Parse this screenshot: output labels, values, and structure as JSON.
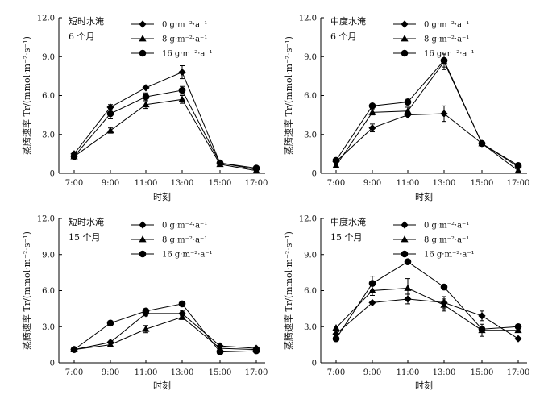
{
  "series_names": [
    "0 g·m⁻²·a⁻¹",
    "8 g·m⁻²·a⁻¹",
    "16 g·m⁻²·a⁻¹"
  ],
  "x_label": "时刻",
  "y_label": "蒸腾速率 Tr/(mmol·m⁻²·s⁻¹)",
  "chart_data": [
    {
      "type": "line",
      "note_line1": "短时水淹",
      "note_line2": "6 个月",
      "categories": [
        "7:00",
        "9:00",
        "11:00",
        "13:00",
        "15:00",
        "17:00"
      ],
      "y_ticks": [
        "0",
        "3.0",
        "6.0",
        "9.0",
        "12.0"
      ],
      "ylim": [
        0,
        12
      ],
      "xlabel": "时刻",
      "ylabel": "蒸腾速率 Tr/(mmol·m⁻²·s⁻¹)",
      "legend_location": "top-center",
      "series": [
        {
          "name": "0 g·m⁻²·a⁻¹",
          "marker": "diamond",
          "values": [
            1.5,
            5.1,
            6.6,
            7.8,
            0.8,
            0.3
          ],
          "errors": [
            0,
            0.2,
            0.1,
            0.5,
            0,
            0
          ]
        },
        {
          "name": "8 g·m⁻²·a⁻¹",
          "marker": "triangle",
          "values": [
            1.3,
            3.3,
            5.3,
            5.7,
            0.7,
            0.2
          ],
          "errors": [
            0,
            0.2,
            0.3,
            0.3,
            0,
            0
          ]
        },
        {
          "name": "16 g·m⁻²·a⁻¹",
          "marker": "circle",
          "values": [
            1.3,
            4.6,
            5.9,
            6.4,
            0.8,
            0.4
          ],
          "errors": [
            0,
            0.4,
            0.3,
            0.3,
            0,
            0
          ]
        }
      ]
    },
    {
      "type": "line",
      "note_line1": "中度水淹",
      "note_line2": "6 个月",
      "categories": [
        "7:00",
        "9:00",
        "11:00",
        "13:00",
        "15:00",
        "17:00"
      ],
      "y_ticks": [
        "0",
        "3.0",
        "6.0",
        "9.0",
        "12.0"
      ],
      "ylim": [
        0,
        12
      ],
      "xlabel": "时刻",
      "ylabel": "蒸腾速率 Tr/(mmol·m⁻²·s⁻¹)",
      "legend_location": "top-center",
      "series": [
        {
          "name": "0 g·m⁻²·a⁻¹",
          "marker": "diamond",
          "values": [
            0.9,
            3.5,
            4.5,
            4.6,
            2.3,
            0.5
          ],
          "errors": [
            0,
            0.3,
            0.1,
            0.6,
            0,
            0
          ]
        },
        {
          "name": "8 g·m⁻²·a⁻¹",
          "marker": "triangle",
          "values": [
            0.6,
            4.7,
            4.8,
            8.6,
            2.3,
            0.2
          ],
          "errors": [
            0,
            0.2,
            0.3,
            0.6,
            0,
            0
          ]
        },
        {
          "name": "16 g·m⁻²·a⁻¹",
          "marker": "circle",
          "values": [
            1.0,
            5.2,
            5.5,
            8.7,
            2.3,
            0.6
          ],
          "errors": [
            0,
            0.3,
            0.3,
            0.5,
            0,
            0
          ]
        }
      ]
    },
    {
      "type": "line",
      "note_line1": "短时水淹",
      "note_line2": "15 个月",
      "categories": [
        "7:00",
        "9:00",
        "11:00",
        "13:00",
        "15:00",
        "17:00"
      ],
      "y_ticks": [
        "0",
        "3.0",
        "6.0",
        "9.0",
        "12.0"
      ],
      "ylim": [
        0,
        12
      ],
      "xlabel": "时刻",
      "ylabel": "蒸腾速率 Tr/(mmol·m⁻²·s⁻¹)",
      "legend_location": "top-center",
      "series": [
        {
          "name": "0 g·m⁻²·a⁻¹",
          "marker": "diamond",
          "values": [
            1.1,
            1.7,
            4.1,
            4.1,
            1.4,
            1.2
          ],
          "errors": [
            0,
            0,
            0.2,
            0.2,
            0,
            0
          ]
        },
        {
          "name": "8 g·m⁻²·a⁻¹",
          "marker": "triangle",
          "values": [
            1.1,
            1.5,
            2.8,
            3.8,
            1.2,
            1.1
          ],
          "errors": [
            0,
            0,
            0.3,
            0.2,
            0,
            0
          ]
        },
        {
          "name": "16 g·m⁻²·a⁻¹",
          "marker": "circle",
          "values": [
            1.1,
            3.3,
            4.3,
            4.9,
            0.9,
            1.0
          ],
          "errors": [
            0,
            0,
            0.2,
            0.1,
            0,
            0
          ]
        }
      ]
    },
    {
      "type": "line",
      "note_line1": "中度水淹",
      "note_line2": "15 个月",
      "categories": [
        "7:00",
        "9:00",
        "11:00",
        "13:00",
        "15:00",
        "17:00"
      ],
      "y_ticks": [
        "0",
        "3.0",
        "6.0",
        "9.0",
        "12.0"
      ],
      "ylim": [
        0,
        12
      ],
      "xlabel": "时刻",
      "ylabel": "蒸腾速率 Tr/(mmol·m⁻²·s⁻¹)",
      "legend_location": "top-center",
      "series": [
        {
          "name": "0 g·m⁻²·a⁻¹",
          "marker": "diamond",
          "values": [
            2.4,
            5.0,
            5.3,
            5.0,
            3.9,
            2.0
          ],
          "errors": [
            0,
            0,
            0.4,
            0.5,
            0.4,
            0
          ]
        },
        {
          "name": "8 g·m⁻²·a⁻¹",
          "marker": "triangle",
          "values": [
            2.9,
            6.0,
            6.2,
            4.8,
            2.7,
            2.7
          ],
          "errors": [
            0,
            0.4,
            0.8,
            0.5,
            0.5,
            0
          ]
        },
        {
          "name": "16 g·m⁻²·a⁻¹",
          "marker": "circle",
          "values": [
            2.0,
            6.6,
            8.4,
            6.3,
            2.8,
            3.0
          ],
          "errors": [
            0,
            0.6,
            0,
            0,
            0,
            0
          ]
        }
      ]
    }
  ]
}
